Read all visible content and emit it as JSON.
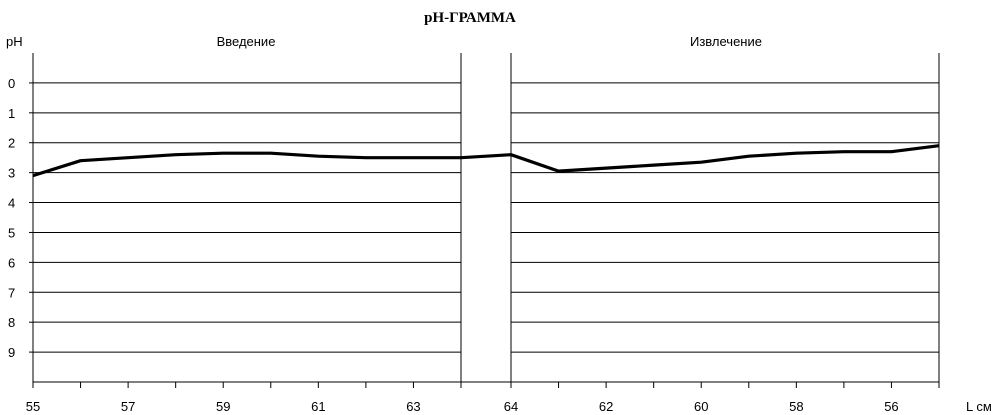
{
  "chart_data": {
    "type": "line",
    "title": "pH-ГРАММА",
    "ylabel": "pH",
    "xlabel": "L см",
    "ylim": [
      -1,
      10
    ],
    "y_inverted": true,
    "y_ticks": [
      "0",
      "1",
      "2",
      "3",
      "4",
      "5",
      "6",
      "7",
      "8",
      "9"
    ],
    "grid": "horizontal",
    "panels": [
      {
        "name": "Введение",
        "xlim": [
          55,
          64
        ],
        "x_tick_labels": [
          "55",
          "57",
          "59",
          "61",
          "63"
        ],
        "x": [
          55,
          56,
          57,
          58,
          59,
          60,
          61,
          62,
          63,
          64
        ],
        "y": [
          3.1,
          2.6,
          2.5,
          2.4,
          2.35,
          2.35,
          2.45,
          2.5,
          2.5,
          2.5
        ]
      },
      {
        "name": "",
        "gap_x": [
          64.0,
          63.5
        ],
        "gap_y": [
          2.5,
          2.4
        ]
      },
      {
        "name": "Извлечение",
        "xlim": [
          64,
          55
        ],
        "x_tick_labels": [
          "64",
          "62",
          "60",
          "58",
          "56"
        ],
        "x": [
          64,
          63,
          62,
          61,
          60,
          59,
          58,
          57,
          56,
          55
        ],
        "y": [
          2.4,
          2.95,
          2.85,
          2.75,
          2.65,
          2.45,
          2.35,
          2.3,
          2.3,
          2.1
        ]
      }
    ],
    "series_color": "#000000",
    "x_axis_right_label": "L см"
  }
}
